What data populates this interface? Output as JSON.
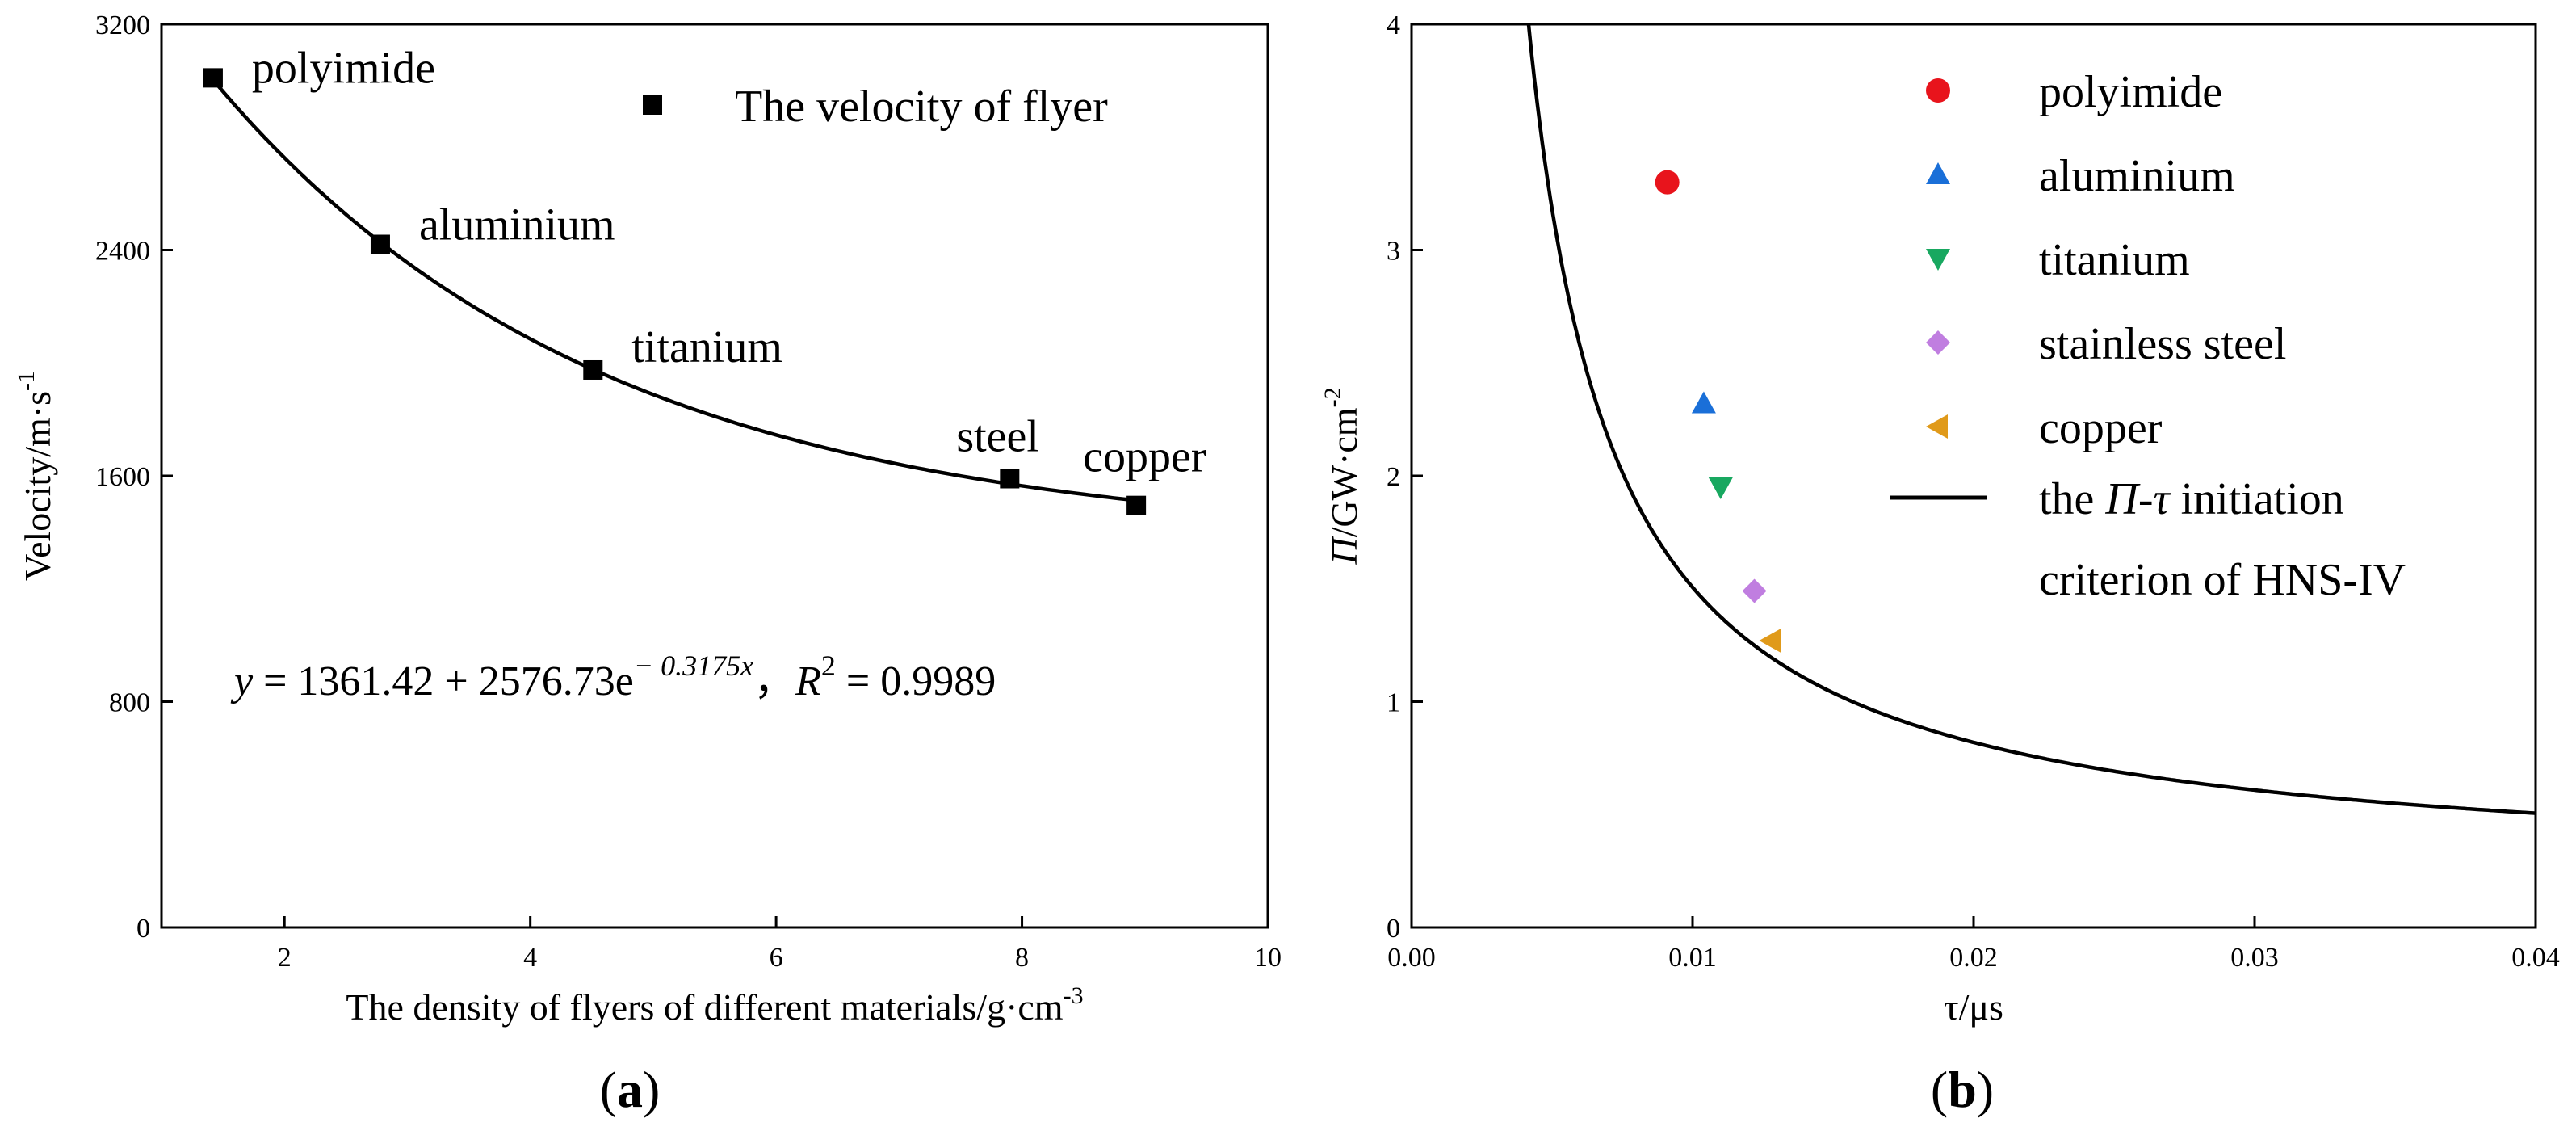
{
  "chart_data": [
    {
      "panel": "(a)",
      "panel_letter": "a",
      "type": "scatter",
      "xlabel": "The density of flyers of different materials/g·cm",
      "xlabel_sup": "-3",
      "ylabel": "Velocity/m·s",
      "ylabel_sup": "-1",
      "xlim": [
        1,
        10
      ],
      "ylim": [
        0,
        3200
      ],
      "xticks": [
        2,
        4,
        6,
        8,
        10
      ],
      "yticks": [
        0,
        800,
        1600,
        2400,
        3200
      ],
      "series": [
        {
          "name": "The velocity of flyer",
          "marker": "square",
          "x": [
            1.42,
            2.78,
            4.51,
            7.9,
            8.93
          ],
          "y": [
            3010,
            2420,
            1975,
            1590,
            1495
          ],
          "labels": [
            "polyimide",
            "aluminium",
            "titanium",
            "steel",
            "copper"
          ]
        }
      ],
      "fit": {
        "a": 1361.42,
        "b": 2576.73,
        "c": -0.3175,
        "x_range": [
          1.42,
          8.93
        ],
        "equation": {
          "y": "y",
          "eq_mid": " = 1361.42 + 2576.73e",
          "exp": "− 0.3175x",
          "sep": "，",
          "r": "R",
          "r_sup": "2",
          "r_val": " = 0.9989"
        }
      },
      "legend_position": "top-right",
      "grid": false
    },
    {
      "panel": "(b)",
      "panel_letter": "b",
      "type": "scatter",
      "xlabel": "τ/μs",
      "ylabel_italic": "Π",
      "ylabel": "/GW·cm",
      "ylabel_sup": "-2",
      "xlim": [
        0.0,
        0.04
      ],
      "ylim": [
        0,
        4
      ],
      "xticks": [
        "0.00",
        "0.01",
        "0.02",
        "0.03",
        "0.04"
      ],
      "xtick_values": [
        0,
        0.01,
        0.02,
        0.03,
        0.04
      ],
      "yticks": [
        0,
        1,
        2,
        3,
        4
      ],
      "series": [
        {
          "name": "polyimide",
          "marker": "circle",
          "color": "#e8141c",
          "x": 0.0091,
          "y": 3.3
        },
        {
          "name": "aluminium",
          "marker": "triangle-up",
          "color": "#1a6fd8",
          "x": 0.0104,
          "y": 2.32
        },
        {
          "name": "titanium",
          "marker": "triangle-down",
          "color": "#18a860",
          "x": 0.011,
          "y": 1.95
        },
        {
          "name": "stainless steel",
          "marker": "diamond",
          "color": "#c07ee0",
          "x": 0.0122,
          "y": 1.49
        },
        {
          "name": "copper",
          "marker": "triangle-left",
          "color": "#e09a1a",
          "x": 0.0128,
          "y": 1.27
        }
      ],
      "criterion": {
        "legend_line1_pre": "the ",
        "legend_line1_pi": "Π",
        "legend_line1_dash": "-",
        "legend_line1_tau": "τ",
        "legend_line1_post": " initiation",
        "legend_line2": "criterion of HNS-IV",
        "k": 0.0115,
        "n": 1.0,
        "offset": 0.21,
        "tau0": 0.00113
      },
      "legend_position": "top-right",
      "grid": false
    }
  ]
}
